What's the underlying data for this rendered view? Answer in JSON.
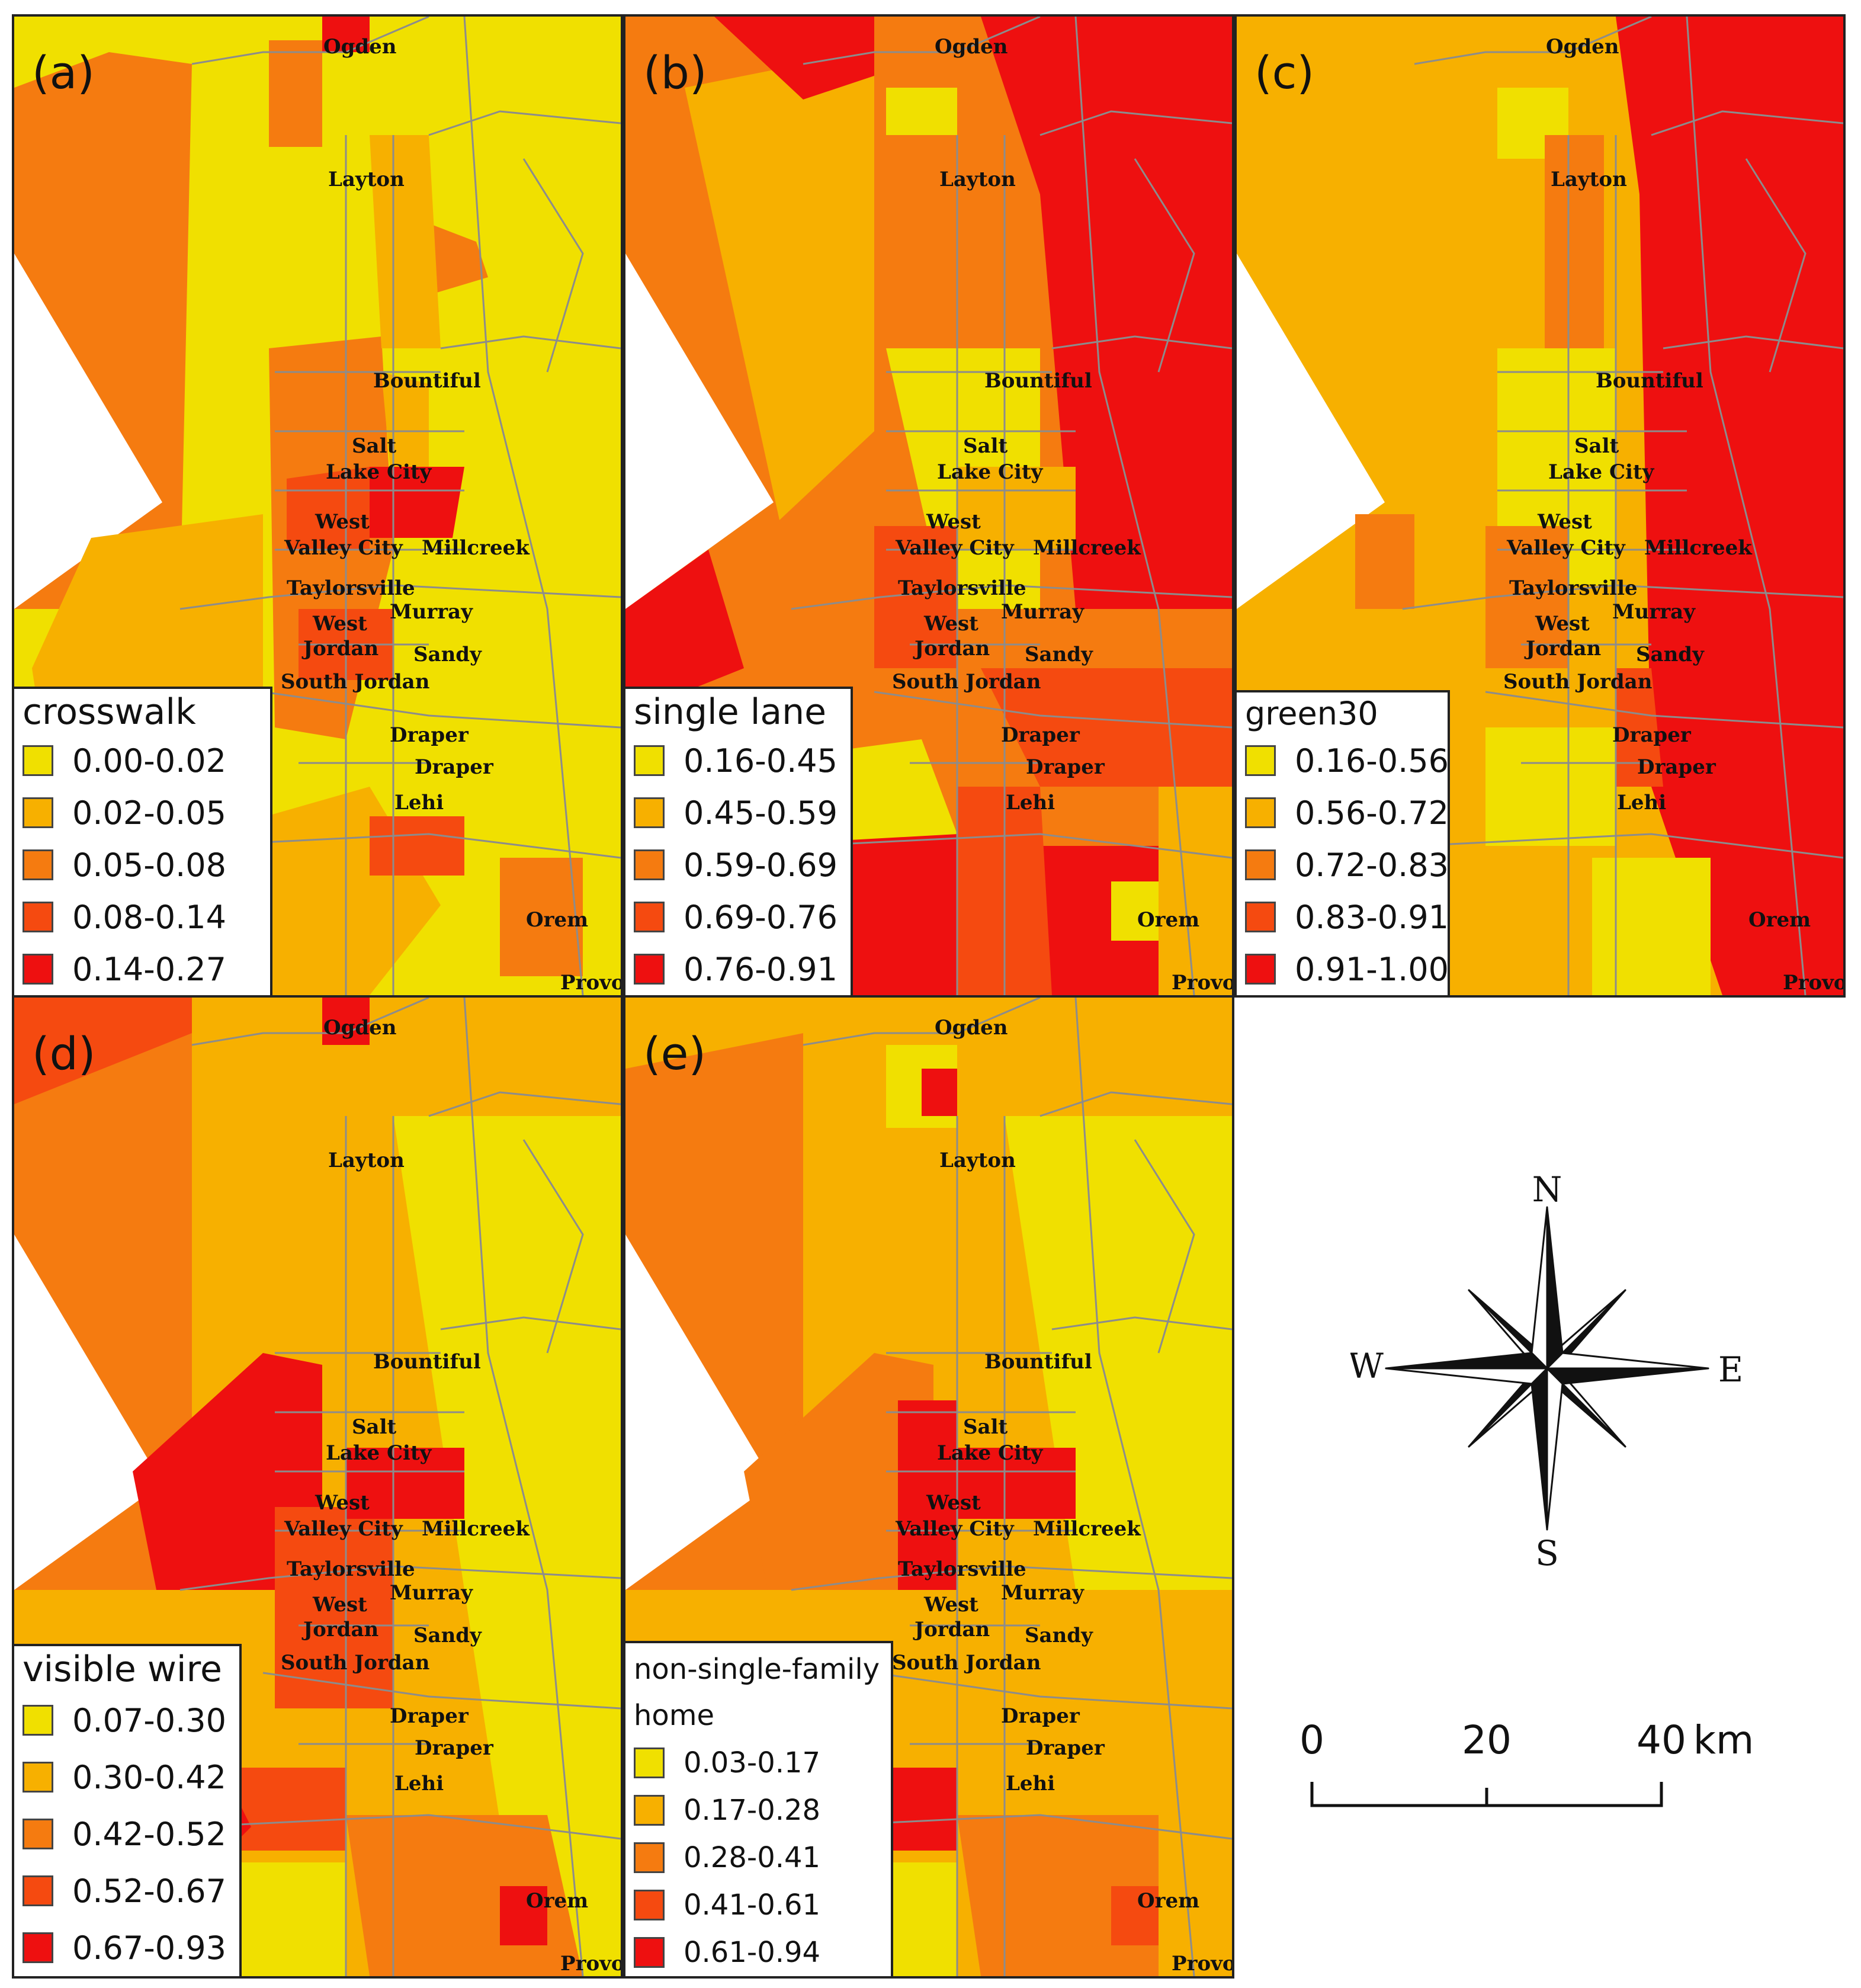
{
  "colors": {
    "c1": "#f0e000",
    "c2": "#f7b000",
    "c3": "#f57b10",
    "c4": "#f54a10",
    "c5": "#ee1010",
    "boundary": "#8c8c8c"
  },
  "cities": {
    "ogden": "Ogden",
    "layton": "Layton",
    "bountiful": "Bountiful",
    "salt": "Salt",
    "lake_city": "Lake City",
    "west1": "West",
    "valley_city": "Valley City",
    "millcreek": "Millcreek",
    "taylorsville": "Taylorsville",
    "west2": "West",
    "murray": "Murray",
    "jordan": "Jordan",
    "sandy": "Sandy",
    "south_jordan": "South Jordan",
    "draper1": "Draper",
    "draper2": "Draper",
    "lehi": "Lehi",
    "orem": "Orem",
    "provo": "Provo"
  },
  "panels": [
    {
      "label": "(a)",
      "legend_title": "crosswalk",
      "classes": [
        "0.00-0.02",
        "0.02-0.05",
        "0.05-0.08",
        "0.08-0.14",
        "0.14-0.27"
      ]
    },
    {
      "label": "(b)",
      "legend_title": "single lane",
      "classes": [
        "0.16-0.45",
        "0.45-0.59",
        "0.59-0.69",
        "0.69-0.76",
        "0.76-0.91"
      ]
    },
    {
      "label": "(c)",
      "legend_title": "green30",
      "classes": [
        "0.16-0.56",
        "0.56-0.72",
        "0.72-0.83",
        "0.83-0.91",
        "0.91-1.00"
      ]
    },
    {
      "label": "(d)",
      "legend_title": "visible wire",
      "classes": [
        "0.07-0.30",
        "0.30-0.42",
        "0.42-0.52",
        "0.52-0.67",
        "0.67-0.93"
      ]
    },
    {
      "label": "(e)",
      "legend_title_line1": "non-single-family",
      "legend_title_line2": "home",
      "classes": [
        "0.03-0.17",
        "0.17-0.28",
        "0.28-0.41",
        "0.41-0.61",
        "0.61-0.94"
      ]
    }
  ],
  "compass": {
    "n": "N",
    "s": "S",
    "e": "E",
    "w": "W"
  },
  "scale_bar": {
    "tick0": "0",
    "tick1": "20",
    "tick2": "40",
    "unit": "km"
  }
}
